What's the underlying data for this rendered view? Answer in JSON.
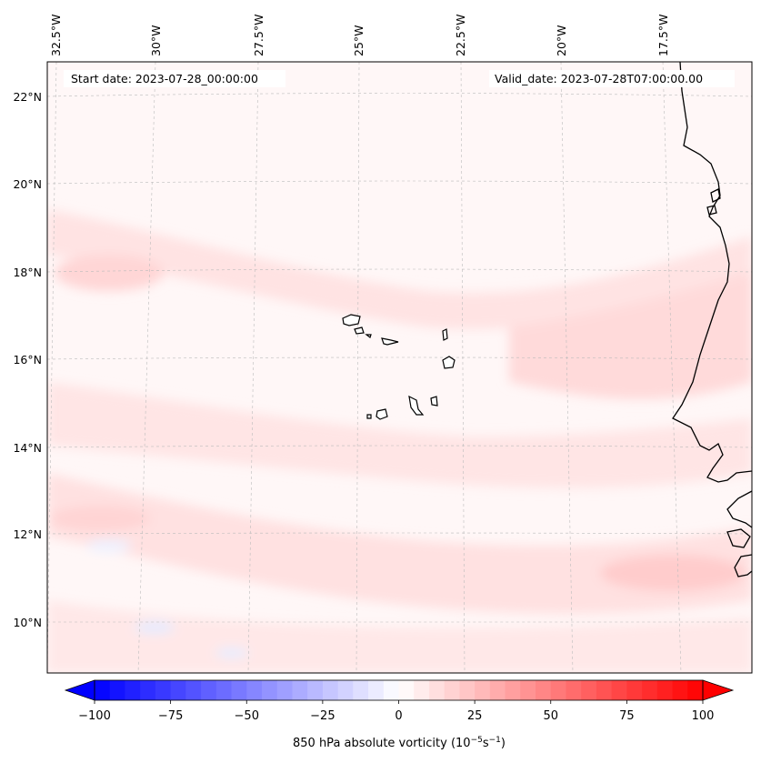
{
  "map": {
    "start_date_label": "Start date: 2023-07-28_00:00:00",
    "valid_date_label": "Valid_date: 2023-07-28T07:00:00.00",
    "lon_labels": [
      "32.5°W",
      "30°W",
      "27.5°W",
      "25°W",
      "22.5°W",
      "20°W",
      "17.5°W"
    ],
    "lat_labels": [
      "22°N",
      "20°N",
      "18°N",
      "16°N",
      "14°N",
      "12°N",
      "10°N"
    ],
    "gridlines": true,
    "field": "850 hPa absolute vorticity"
  },
  "colorbar": {
    "ticks": [
      "−100",
      "−75",
      "−50",
      "−25",
      "0",
      "25",
      "50",
      "75",
      "100"
    ],
    "min": -100,
    "max": 100,
    "levels": 40,
    "extend": "both",
    "colormap": "bwr",
    "color_low": "#0000ff",
    "color_mid": "#ffffff",
    "color_high": "#ff0000",
    "label_main": "850 hPa absolute vorticity (10",
    "label_exp1": "−5",
    "label_mid": "s",
    "label_exp2": "−1",
    "label_end": ")"
  }
}
